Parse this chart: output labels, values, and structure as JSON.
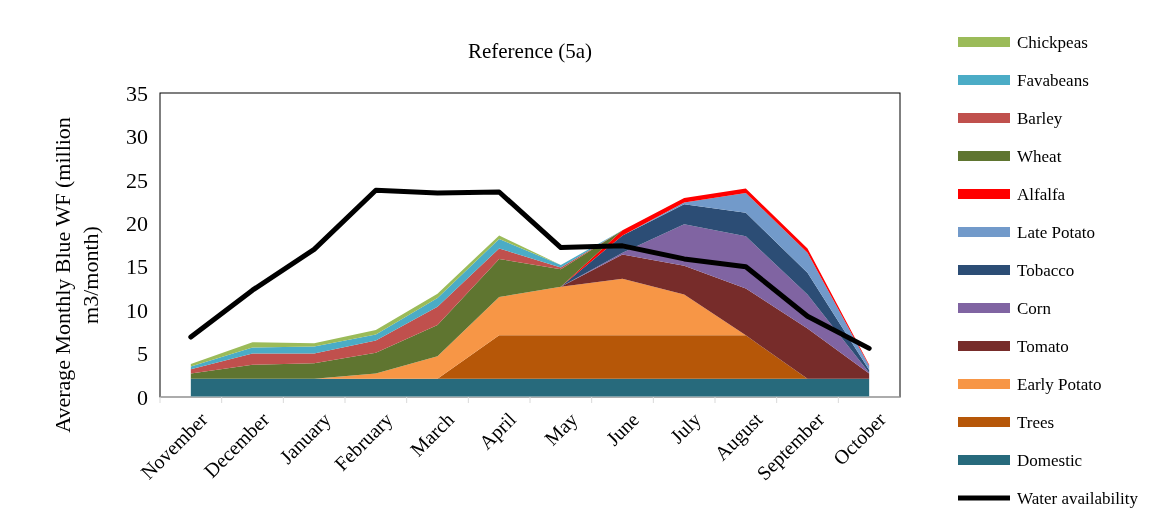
{
  "chart_data": {
    "type": "area",
    "stacked": true,
    "title": "Reference (5a)",
    "ylabel": "Average Monthly Blue WF (million m3/month)",
    "categories": [
      "November",
      "December",
      "January",
      "February",
      "March",
      "April",
      "May",
      "June",
      "July",
      "August",
      "September",
      "October"
    ],
    "ylim": [
      0,
      35
    ],
    "yticks": [
      0,
      5,
      10,
      15,
      20,
      25,
      30,
      35
    ],
    "grid": false,
    "legend": "right",
    "series": [
      {
        "name": "Domestic",
        "color": "#276a7c",
        "values": [
          2.1,
          2.1,
          2.1,
          2.1,
          2.1,
          2.1,
          2.1,
          2.1,
          2.1,
          2.1,
          2.1,
          2.1
        ]
      },
      {
        "name": "Trees",
        "color": "#b65708",
        "values": [
          null,
          null,
          null,
          null,
          0,
          5,
          5,
          5,
          5,
          5,
          0,
          null
        ]
      },
      {
        "name": "Early Potato",
        "color": "#f79646",
        "values": [
          null,
          null,
          0,
          0.6,
          2.6,
          4.4,
          5.6,
          6.5,
          4.7,
          0,
          null,
          null
        ]
      },
      {
        "name": "Tomato",
        "color": "#772c2a",
        "values": [
          null,
          null,
          null,
          null,
          null,
          null,
          0,
          2.8,
          3.3,
          5.4,
          5.8,
          0.6
        ]
      },
      {
        "name": "Corn",
        "color": "#8064a2",
        "values": [
          null,
          null,
          null,
          null,
          null,
          null,
          0,
          0.2,
          4.8,
          6,
          3.9,
          0.1
        ]
      },
      {
        "name": "Tobacco",
        "color": "#2c4d75",
        "values": [
          null,
          null,
          null,
          null,
          null,
          null,
          0,
          2,
          2.3,
          2.7,
          2.5,
          0.3
        ]
      },
      {
        "name": "Late Potato",
        "color": "#729aca",
        "values": [
          null,
          null,
          null,
          null,
          null,
          null,
          null,
          0,
          0.2,
          2.3,
          2.3,
          0.5
        ]
      },
      {
        "name": "Alfalfa",
        "color": "#ff0000",
        "values": [
          null,
          null,
          null,
          null,
          null,
          null,
          0,
          0.6,
          0.5,
          0.5,
          0.5,
          0.1
        ]
      },
      {
        "name": "Wheat",
        "color": "#5f7530",
        "values": [
          0.6,
          1.6,
          1.8,
          2.4,
          3.6,
          4.4,
          2,
          0,
          null,
          null,
          null,
          null
        ]
      },
      {
        "name": "Barley",
        "color": "#c0504d",
        "values": [
          0.5,
          1.3,
          1.1,
          1.4,
          2.1,
          1.2,
          0.2,
          0,
          null,
          null,
          null,
          null
        ]
      },
      {
        "name": "Favabeans",
        "color": "#4bacc6",
        "values": [
          0.3,
          0.7,
          0.8,
          0.7,
          1,
          1.1,
          0.3,
          0,
          null,
          null,
          null,
          null
        ]
      },
      {
        "name": "Chickpeas",
        "color": "#9bbb59",
        "values": [
          0.3,
          0.6,
          0.4,
          0.5,
          0.5,
          0.4,
          0,
          null,
          null,
          null,
          null,
          null
        ]
      },
      {
        "name": "Water availability",
        "type": "line",
        "color": "#000000",
        "values": [
          6.9,
          12.3,
          17,
          23.8,
          23.5,
          23.6,
          17.2,
          17.4,
          15.9,
          15,
          9.3,
          5.6
        ]
      }
    ]
  }
}
